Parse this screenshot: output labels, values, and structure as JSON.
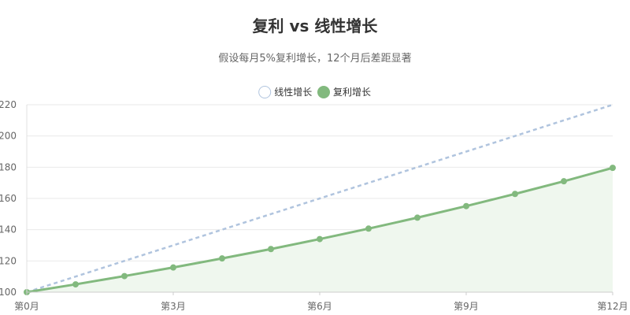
{
  "chart_data": {
    "type": "line",
    "title": "复利 vs 线性增长",
    "subtitle": "假设每月5%复利增长，12个月后差距显著",
    "x": [
      0,
      1,
      2,
      3,
      4,
      5,
      6,
      7,
      8,
      9,
      10,
      11,
      12
    ],
    "xticks": [
      {
        "value": 0,
        "label": "第0月"
      },
      {
        "value": 3,
        "label": "第3月"
      },
      {
        "value": 6,
        "label": "第6月"
      },
      {
        "value": 9,
        "label": "第9月"
      },
      {
        "value": 12,
        "label": "第12月"
      }
    ],
    "ylim": [
      100,
      220
    ],
    "yticks": [
      100,
      120,
      140,
      160,
      180,
      200,
      220
    ],
    "grid": true,
    "legend_position": "top-center",
    "series": [
      {
        "name": "线性增长",
        "color": "#b0c4de",
        "style": "dashed",
        "markers": false,
        "fill": false,
        "values": [
          100,
          110,
          120,
          130,
          140,
          150,
          160,
          170,
          180,
          190,
          200,
          210,
          220
        ]
      },
      {
        "name": "复利增长",
        "color": "#82b97e",
        "style": "solid",
        "markers": true,
        "fill": true,
        "fill_color": "#eff7ee",
        "values": [
          100,
          105,
          110.3,
          115.8,
          121.6,
          127.6,
          134,
          140.7,
          147.7,
          155.1,
          162.9,
          171,
          179.6
        ]
      }
    ]
  }
}
